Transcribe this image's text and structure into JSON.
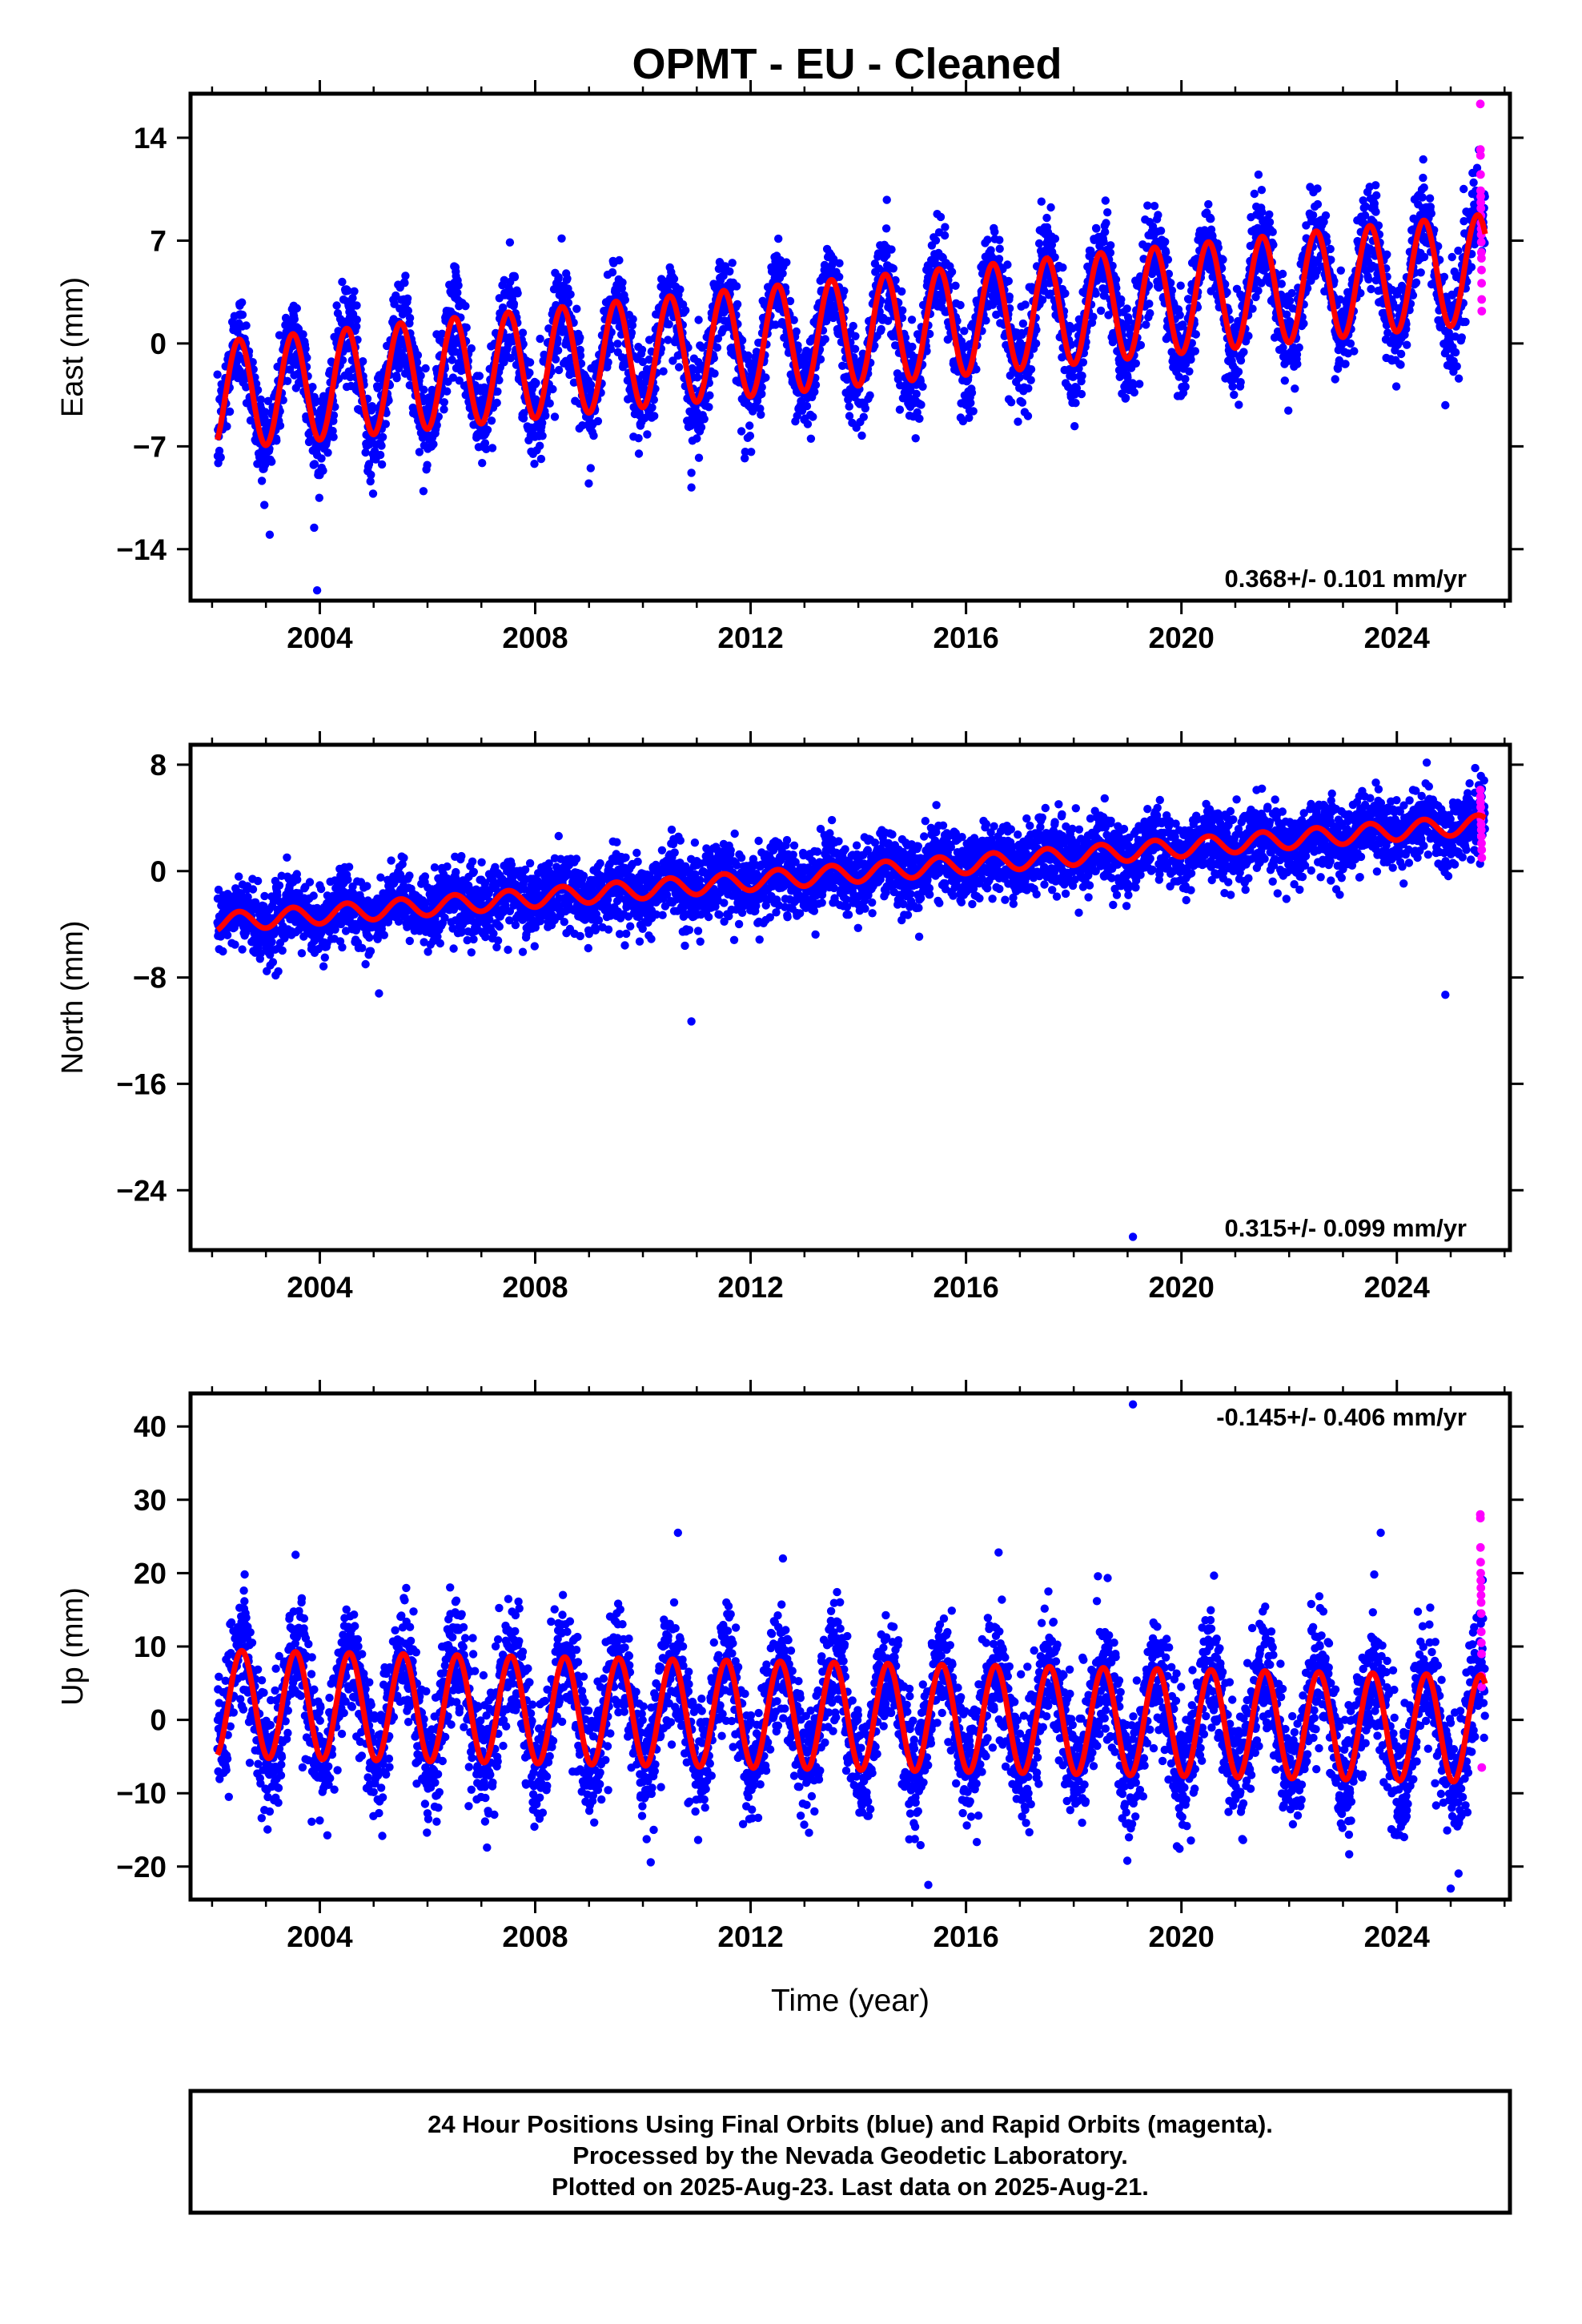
{
  "title": "OPMT  - EU - Cleaned",
  "chart_data": [
    {
      "type": "scatter",
      "ylabel": "East (mm)",
      "xlabel": "",
      "xlim": [
        2001.6,
        2026.1
      ],
      "ylim": [
        -17.5,
        17
      ],
      "yticks": [
        -14,
        -7,
        0,
        7,
        14
      ],
      "xticks": [
        2004,
        2008,
        2012,
        2016,
        2020,
        2024
      ],
      "rate_label": "0.368+/- 0.101 mm/yr",
      "rate_position": "bottom-right",
      "data_start": 2002.1,
      "data_end": 2025.64,
      "rapid_start": 2025.55,
      "series": [
        {
          "name": "Final Orbits (blue)",
          "color": "#0000ff",
          "kind": "points",
          "trend": {
            "intercept_2002": -3.6,
            "slope_mm_per_yr": 0.368,
            "annual_amplitude": 3.7,
            "annual_phase_peak": 0.5,
            "scatter_sd": 1.6
          }
        },
        {
          "name": "Rapid Orbits (magenta)",
          "color": "#ff00ff",
          "kind": "points",
          "values": [
            16.3,
            13.2,
            12.8,
            11.5,
            10.4,
            10.0,
            9.6,
            9.2,
            8.7,
            8.2,
            7.8,
            7.4,
            6.9,
            6.2,
            5.8,
            5.0,
            4.1,
            3.0,
            2.2
          ]
        },
        {
          "name": "Model fit",
          "color": "#ff0000",
          "kind": "line"
        }
      ],
      "outliers": [
        [
          2003.95,
          -16.8
        ],
        [
          2010.9,
          -9.8
        ],
        [
          2010.9,
          -8.8
        ],
        [
          2024.9,
          -4.2
        ]
      ]
    },
    {
      "type": "scatter",
      "ylabel": "North (mm)",
      "xlabel": "",
      "xlim": [
        2001.6,
        2026.1
      ],
      "ylim": [
        -28.5,
        9.5
      ],
      "yticks": [
        -24,
        -16,
        -8,
        0,
        8
      ],
      "xticks": [
        2004,
        2008,
        2012,
        2016,
        2020,
        2024
      ],
      "rate_label": "0.315+/- 0.099 mm/yr",
      "rate_position": "bottom-right",
      "data_start": 2002.1,
      "data_end": 2025.64,
      "rapid_start": 2025.55,
      "series": [
        {
          "name": "Final Orbits (blue)",
          "color": "#0000ff",
          "kind": "points",
          "trend": {
            "intercept_2002": -3.9,
            "slope_mm_per_yr": 0.315,
            "annual_amplitude": 0.7,
            "annual_phase_peak": 0.5,
            "scatter_sd": 1.3
          }
        },
        {
          "name": "Rapid Orbits (magenta)",
          "color": "#ff00ff",
          "kind": "points",
          "values": [
            6.1,
            5.6,
            5.2,
            4.8,
            4.3,
            3.9,
            3.5,
            3.1,
            2.6,
            2.1,
            1.6,
            1.0
          ]
        },
        {
          "name": "Model fit",
          "color": "#ff0000",
          "kind": "line"
        }
      ],
      "outliers": [
        [
          2010.9,
          -11.3
        ],
        [
          2019.1,
          -27.5
        ],
        [
          2024.9,
          -9.3
        ],
        [
          2005.1,
          -9.2
        ]
      ]
    },
    {
      "type": "scatter",
      "ylabel": "Up (mm)",
      "xlabel": "Time (year)",
      "xlim": [
        2001.6,
        2026.1
      ],
      "ylim": [
        -24.5,
        44.5
      ],
      "yticks": [
        -20,
        -10,
        0,
        10,
        20,
        30,
        40
      ],
      "xticks": [
        2004,
        2008,
        2012,
        2016,
        2020,
        2024
      ],
      "rate_label": "-0.145+/- 0.406 mm/yr",
      "rate_position": "top-right",
      "data_start": 2002.1,
      "data_end": 2025.64,
      "rapid_start": 2025.55,
      "series": [
        {
          "name": "Final Orbits (blue)",
          "color": "#0000ff",
          "kind": "points",
          "trend": {
            "intercept_2002": 2.2,
            "slope_mm_per_yr": -0.145,
            "annual_amplitude": 7.3,
            "annual_phase_peak": 0.55,
            "scatter_sd": 4.2
          }
        },
        {
          "name": "Rapid Orbits (magenta)",
          "color": "#ff00ff",
          "kind": "points",
          "values": [
            28.0,
            27.5,
            23.5,
            21.5,
            20.0,
            19.0,
            18.0,
            17.0,
            16.0,
            14.5,
            12.0,
            10.5,
            9.0,
            6.0,
            4.5,
            -6.5
          ]
        },
        {
          "name": "Model fit",
          "color": "#ff0000",
          "kind": "line"
        }
      ],
      "outliers": [
        [
          2019.1,
          43.0
        ],
        [
          2010.65,
          25.5
        ],
        [
          2023.7,
          25.5
        ],
        [
          2003.55,
          22.5
        ],
        [
          2012.6,
          22.0
        ],
        [
          2015.3,
          -22.5
        ],
        [
          2025.0,
          -23.0
        ]
      ]
    }
  ],
  "footer": {
    "line1": "24 Hour Positions Using Final Orbits (blue) and Rapid Orbits (magenta).",
    "line2": "Processed by the Nevada Geodetic Laboratory.",
    "line3": "Plotted on 2025-Aug-23. Last data on 2025-Aug-21."
  },
  "colors": {
    "final": "#0000ff",
    "rapid": "#ff00ff",
    "model": "#ff0000",
    "frame": "#000000"
  }
}
